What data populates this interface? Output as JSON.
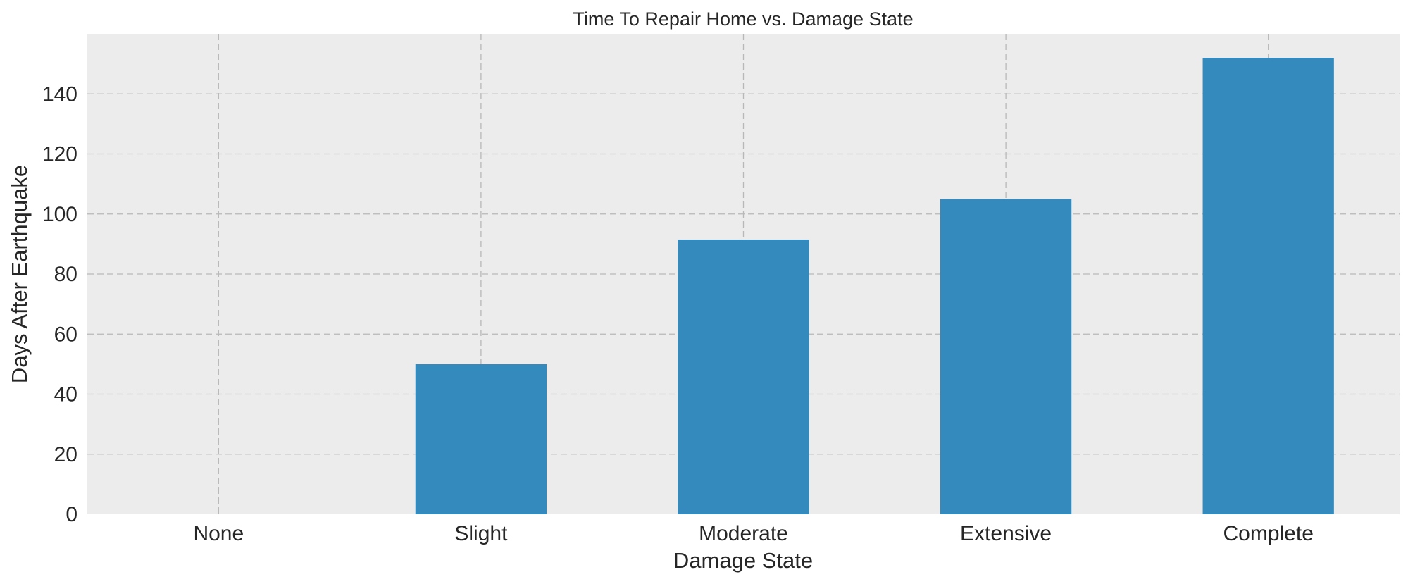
{
  "chart_data": {
    "type": "bar",
    "title": "Time To Repair Home vs. Damage State",
    "xlabel": "Damage State",
    "ylabel": "Days After Earthquake",
    "categories": [
      "None",
      "Slight",
      "Moderate",
      "Extensive",
      "Complete"
    ],
    "values": [
      0,
      50,
      91.5,
      105,
      152
    ],
    "ylim": [
      0,
      160
    ],
    "yticks": [
      0,
      20,
      40,
      60,
      80,
      100,
      120,
      140
    ],
    "grid": true,
    "legend": "none",
    "colors": {
      "bar": "#348abd",
      "plot_background": "#ececec",
      "grid": "#b8b8b8"
    }
  }
}
